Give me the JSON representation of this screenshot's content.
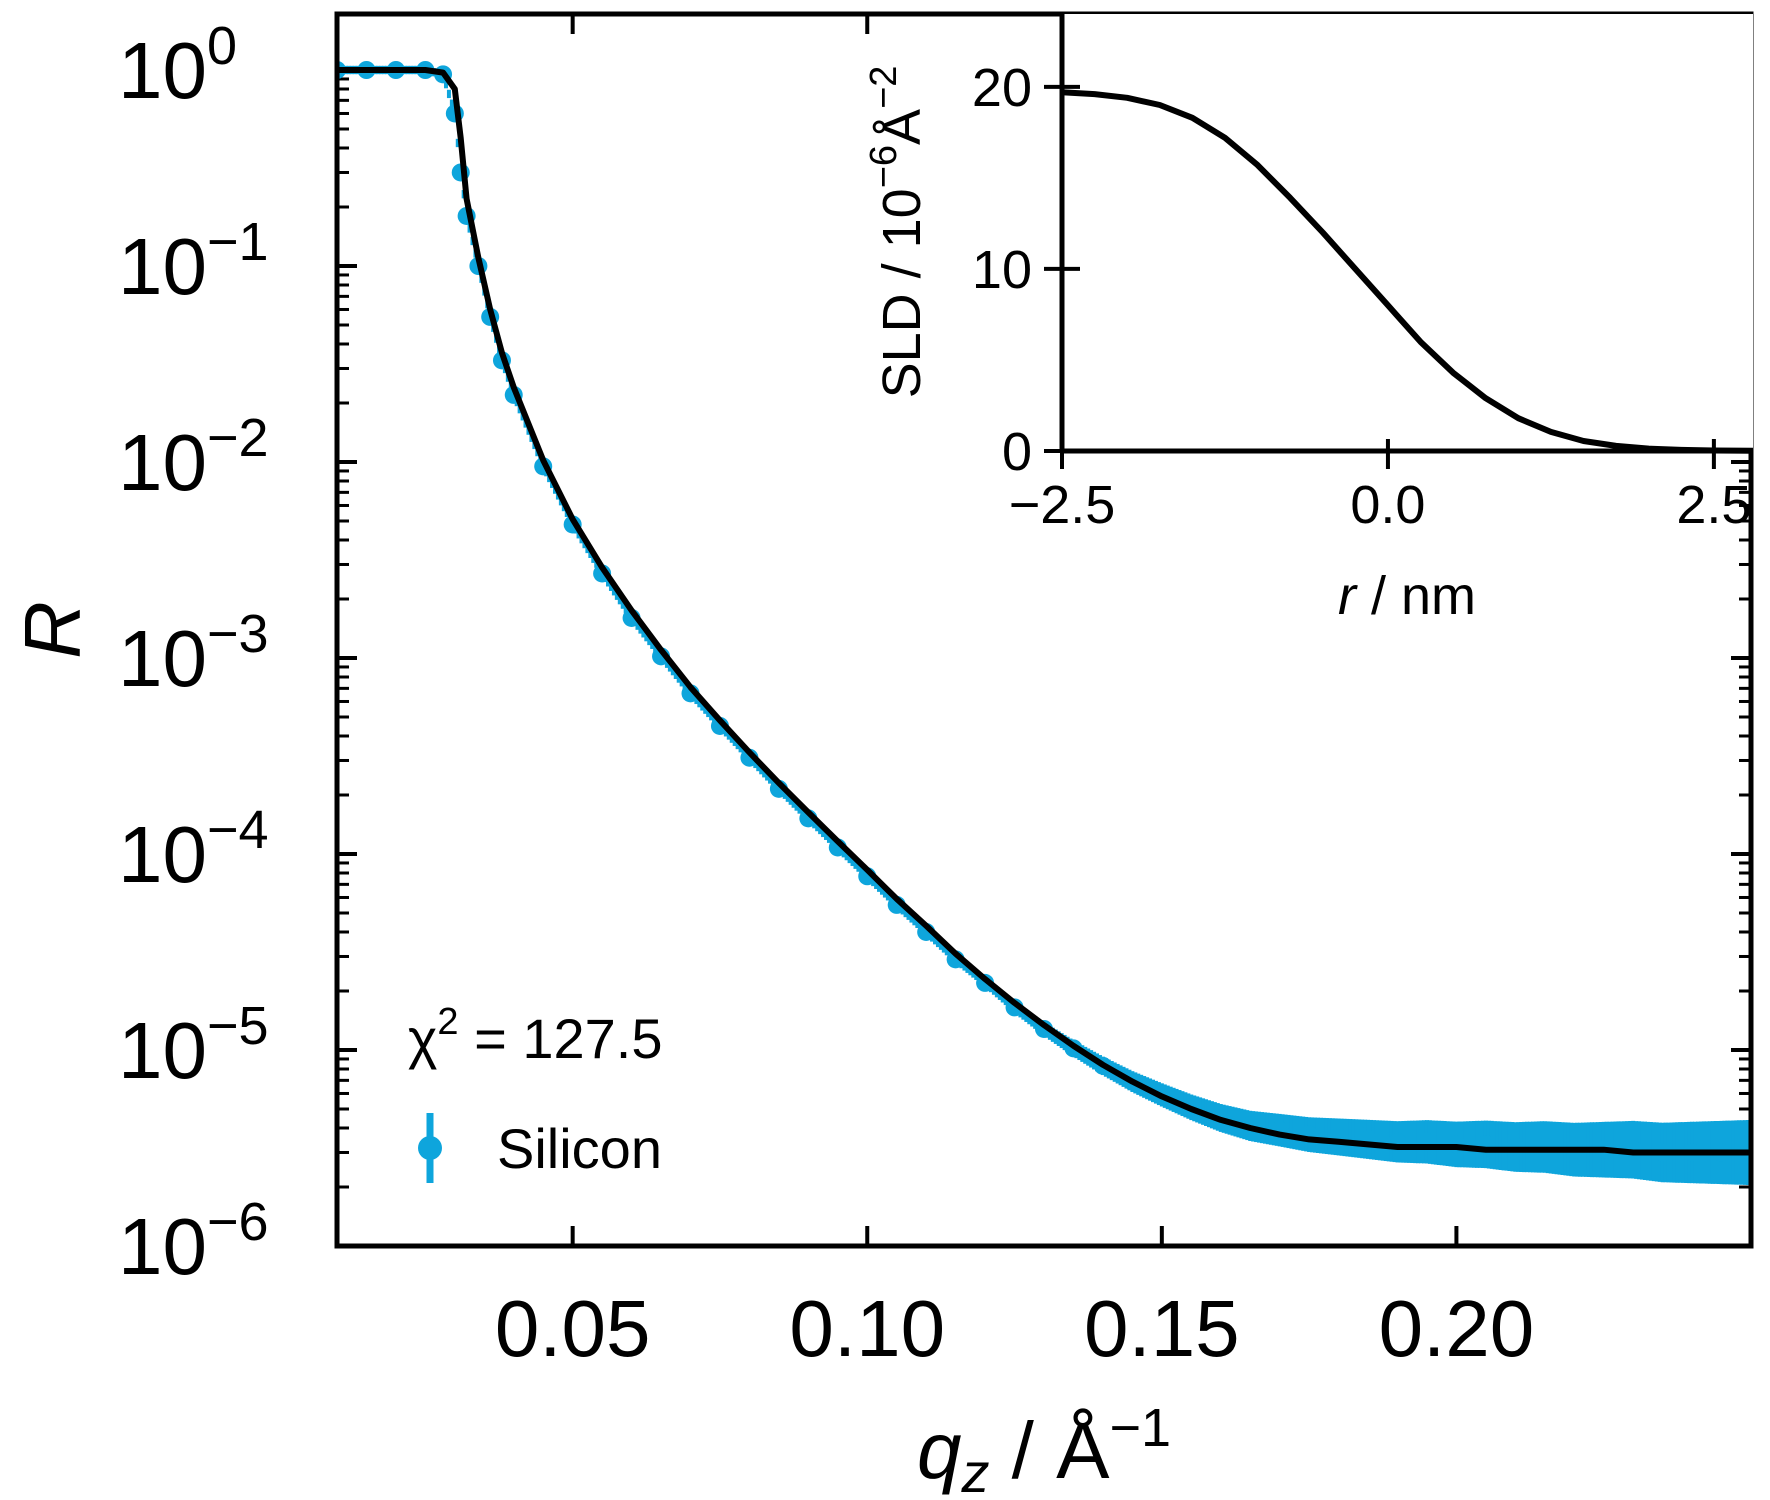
{
  "chart_data": [
    {
      "type": "scatter",
      "role": "main",
      "xlabel": {
        "var": "q",
        "sub": "z",
        "sep": " / ",
        "unit": "Å",
        "exp": "−1"
      },
      "ylabel": "R",
      "xlim": [
        0.01,
        0.25
      ],
      "ylim": [
        1e-06,
        1
      ],
      "yscale": "log",
      "xticks": [
        {
          "value": 0.05,
          "label": "0.05"
        },
        {
          "value": 0.1,
          "label": "0.10"
        },
        {
          "value": 0.15,
          "label": "0.15"
        },
        {
          "value": 0.2,
          "label": "0.20"
        }
      ],
      "yticks": [
        {
          "value": 1,
          "base": "10",
          "exp": "0"
        },
        {
          "value": 0.1,
          "base": "10",
          "exp": "−1"
        },
        {
          "value": 0.01,
          "base": "10",
          "exp": "−2"
        },
        {
          "value": 0.001,
          "base": "10",
          "exp": "−3"
        },
        {
          "value": 0.0001,
          "base": "10",
          "exp": "−4"
        },
        {
          "value": 1e-05,
          "base": "10",
          "exp": "−5"
        },
        {
          "value": 1e-06,
          "base": "10",
          "exp": "−6"
        }
      ],
      "annotation": {
        "prefix": "χ",
        "exp": "2",
        "text": " = 127.5"
      },
      "legend": {
        "position": "lower-left",
        "entries": [
          {
            "name": "Silicon",
            "color": "#0ea5dc",
            "marker": "errorbar-point"
          }
        ]
      },
      "series": [
        {
          "name": "Silicon",
          "kind": "data",
          "color": "#0ea5dc",
          "x": [
            0.01,
            0.015,
            0.02,
            0.025,
            0.028,
            0.03,
            0.031,
            0.032,
            0.034,
            0.036,
            0.038,
            0.04,
            0.045,
            0.05,
            0.055,
            0.06,
            0.065,
            0.07,
            0.075,
            0.08,
            0.085,
            0.09,
            0.095,
            0.1,
            0.105,
            0.11,
            0.115,
            0.12,
            0.125,
            0.13,
            0.135,
            0.14,
            0.145,
            0.15,
            0.155,
            0.16,
            0.165,
            0.17,
            0.175,
            0.18,
            0.185,
            0.19,
            0.195,
            0.2,
            0.205,
            0.21,
            0.215,
            0.22,
            0.225,
            0.23,
            0.235,
            0.24,
            0.245,
            0.25
          ],
          "y": [
            1.0,
            1.0,
            1.0,
            1.0,
            0.95,
            0.6,
            0.3,
            0.18,
            0.1,
            0.055,
            0.033,
            0.022,
            0.0095,
            0.0048,
            0.0027,
            0.0016,
            0.00102,
            0.00066,
            0.00045,
            0.00031,
            0.000215,
            0.000152,
            0.000108,
            7.7e-05,
            5.5e-05,
            4e-05,
            2.9e-05,
            2.2e-05,
            1.65e-05,
            1.28e-05,
            1.02e-05,
            8.3e-06,
            6.9e-06,
            5.9e-06,
            5.1e-06,
            4.5e-06,
            4.1e-06,
            3.9e-06,
            3.7e-06,
            3.6e-06,
            3.5e-06,
            3.4e-06,
            3.4e-06,
            3.3e-06,
            3.3e-06,
            3.2e-06,
            3.2e-06,
            3.1e-06,
            3.1e-06,
            3.1e-06,
            3e-06,
            3e-06,
            3e-06,
            3e-06
          ]
        },
        {
          "name": "fit",
          "kind": "line",
          "color": "#000000",
          "x": [
            0.01,
            0.02,
            0.025,
            0.028,
            0.03,
            0.031,
            0.032,
            0.034,
            0.036,
            0.038,
            0.04,
            0.045,
            0.05,
            0.055,
            0.06,
            0.065,
            0.07,
            0.075,
            0.08,
            0.085,
            0.09,
            0.095,
            0.1,
            0.105,
            0.11,
            0.115,
            0.12,
            0.125,
            0.13,
            0.135,
            0.14,
            0.145,
            0.15,
            0.155,
            0.16,
            0.165,
            0.17,
            0.175,
            0.18,
            0.185,
            0.19,
            0.195,
            0.2,
            0.205,
            0.21,
            0.215,
            0.22,
            0.225,
            0.23,
            0.235,
            0.24,
            0.245,
            0.25
          ],
          "y": [
            1.0,
            1.0,
            1.0,
            0.97,
            0.8,
            0.45,
            0.22,
            0.11,
            0.06,
            0.036,
            0.024,
            0.0102,
            0.0051,
            0.0029,
            0.00175,
            0.0011,
            0.00071,
            0.00048,
            0.00033,
            0.00023,
            0.000163,
            0.000116,
            8.3e-05,
            5.9e-05,
            4.3e-05,
            3.1e-05,
            2.3e-05,
            1.74e-05,
            1.34e-05,
            1.05e-05,
            8.4e-06,
            6.9e-06,
            5.8e-06,
            5e-06,
            4.4e-06,
            4e-06,
            3.7e-06,
            3.5e-06,
            3.4e-06,
            3.3e-06,
            3.2e-06,
            3.2e-06,
            3.2e-06,
            3.1e-06,
            3.1e-06,
            3.1e-06,
            3.1e-06,
            3.1e-06,
            3e-06,
            3e-06,
            3e-06,
            3e-06,
            3e-06
          ]
        }
      ]
    },
    {
      "type": "line",
      "role": "inset",
      "xlabel": {
        "var": "r",
        "sep": " / ",
        "unit": "nm"
      },
      "ylabel": {
        "prefix": "SLD / 10",
        "exp1": "−6",
        "mid": "Å",
        "exp2": "−2"
      },
      "xlim": [
        -2.5,
        2.8
      ],
      "ylim": [
        0,
        24
      ],
      "xticks": [
        {
          "value": -2.5,
          "label": "−2.5"
        },
        {
          "value": 0.0,
          "label": "0.0"
        },
        {
          "value": 2.5,
          "label": "2.5"
        }
      ],
      "yticks": [
        {
          "value": 0,
          "label": "0"
        },
        {
          "value": 10,
          "label": "10"
        },
        {
          "value": 20,
          "label": "20"
        }
      ],
      "series": [
        {
          "name": "SLD profile",
          "color": "#000000",
          "x": [
            -2.5,
            -2.25,
            -2.0,
            -1.75,
            -1.5,
            -1.25,
            -1.0,
            -0.75,
            -0.5,
            -0.25,
            0.0,
            0.25,
            0.5,
            0.75,
            1.0,
            1.25,
            1.5,
            1.75,
            2.0,
            2.25,
            2.5,
            2.8
          ],
          "y": [
            19.7,
            19.6,
            19.4,
            19.0,
            18.3,
            17.2,
            15.7,
            13.9,
            12.0,
            10.0,
            8.0,
            6.0,
            4.3,
            2.9,
            1.8,
            1.05,
            0.55,
            0.28,
            0.13,
            0.06,
            0.03,
            0.01
          ]
        }
      ]
    }
  ]
}
